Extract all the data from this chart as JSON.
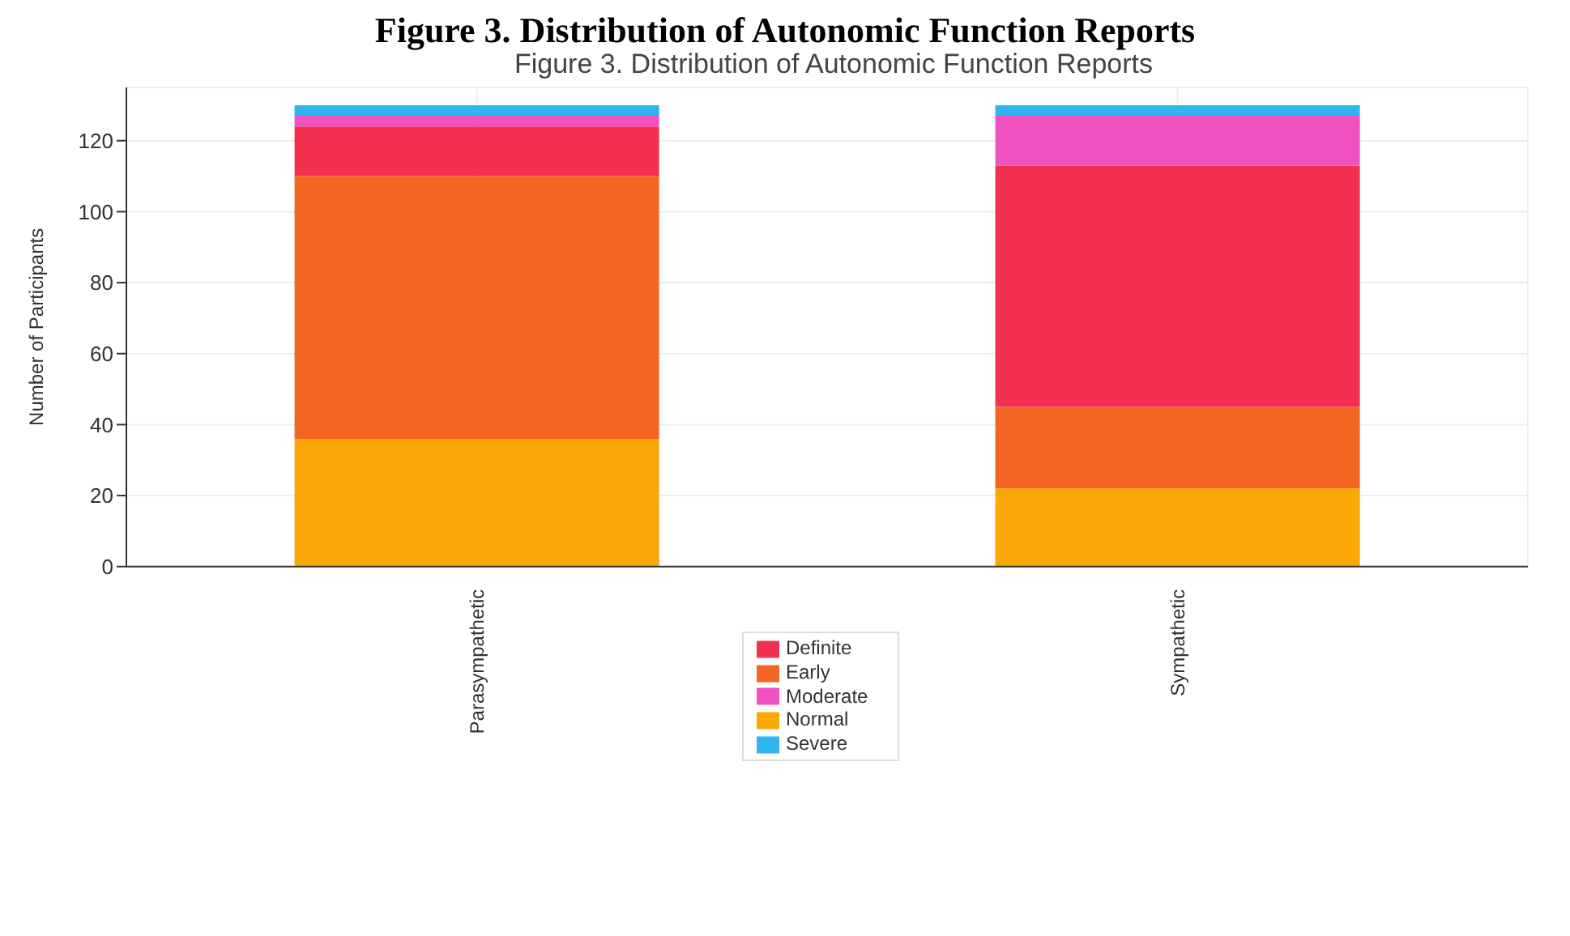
{
  "chart_data": {
    "type": "bar",
    "title": "Figure 3. Distribution of Autonomic Function Reports",
    "subtitle": "Figure 3. Distribution of Autonomic Function Reports",
    "ylabel": "Number of Participants",
    "categories": [
      "Parasympathetic",
      "Sympathetic"
    ],
    "stacked": true,
    "series": [
      {
        "name": "Normal",
        "color": "#f9a806",
        "values": [
          36,
          22
        ]
      },
      {
        "name": "Early",
        "color": "#f26522",
        "values": [
          74,
          23
        ]
      },
      {
        "name": "Definite",
        "color": "#f23151",
        "values": [
          14,
          68
        ]
      },
      {
        "name": "Moderate",
        "color": "#f052c0",
        "values": [
          3,
          14
        ]
      },
      {
        "name": "Severe",
        "color": "#2eb4ee",
        "values": [
          3,
          3
        ]
      }
    ],
    "ylim": [
      0,
      135
    ],
    "yticks": [
      0,
      20,
      40,
      60,
      80,
      100,
      120
    ],
    "grid": true,
    "legend": "bottom"
  }
}
